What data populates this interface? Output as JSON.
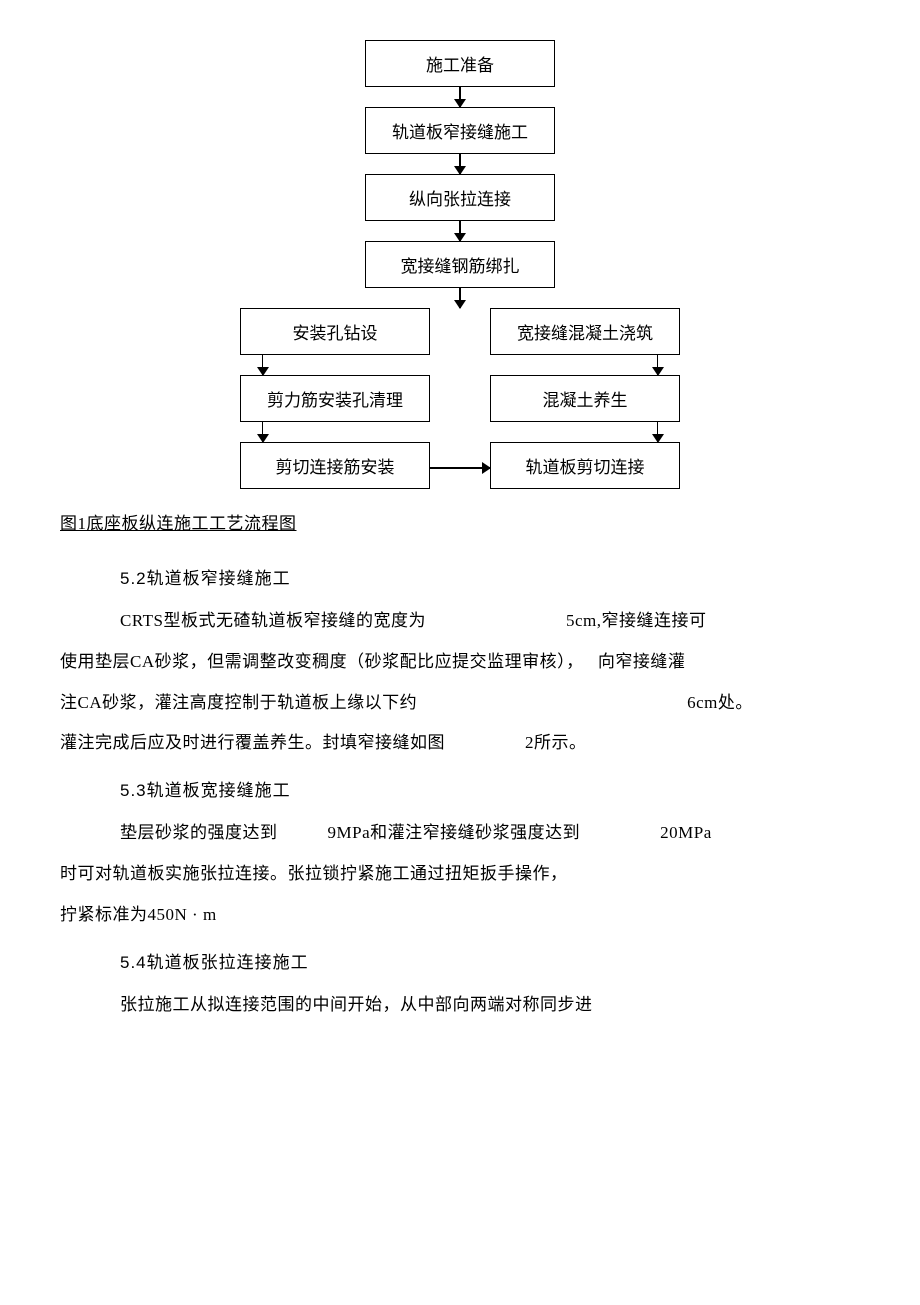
{
  "flowchart": {
    "nodes": {
      "n1": "施工准备",
      "n2": "轨道板窄接缝施工",
      "n3": "纵向张拉连接",
      "n4": "宽接缝钢筋绑扎",
      "n5l": "安装孔钻设",
      "n5r": "宽接缝混凝土浇筑",
      "n6l": "剪力筋安装孔清理",
      "n6r": "混凝土养生",
      "n7l": "剪切连接筋安装",
      "n7r": "轨道板剪切连接"
    },
    "node_border_color": "#000000",
    "node_bg_color": "#ffffff",
    "node_fontsize": 17,
    "arrow_color": "#000000"
  },
  "caption": "图1底座板纵连施工工艺流程图",
  "sections": {
    "s52": {
      "heading": "5.2轨道板窄接缝施工",
      "p1_a": "CRTS型板式无碴轨道板窄接缝的宽度为",
      "p1_b": "5cm,窄接缝连接可",
      "p1_c": "使用垫层CA砂浆，但需调整改变稠度（砂浆配比应提交监理审核），",
      "p1_d": "向窄接缝灌",
      "p1_e": "注CA砂浆，灌注高度控制于轨道板上缘以下约",
      "p1_f": "6cm处。",
      "p1_g": "灌注完成后应及时进行覆盖养生。封填窄接缝如图",
      "p1_h": "2所示。"
    },
    "s53": {
      "heading": "5.3轨道板宽接缝施工",
      "p1_a": "垫层砂浆的强度达到",
      "p1_b": "9MPa和灌注窄接缝砂浆强度达到",
      "p1_c": "20MPa",
      "p1_d": "时可对轨道板实施张拉连接。张拉锁拧紧施工通过扭矩扳手操作，",
      "p1_e": "拧紧标准为450N · m"
    },
    "s54": {
      "heading": "5.4轨道板张拉连接施工",
      "p1_a": "张拉施工从拟连接范围的中间开始，从中部向两端对称同步进"
    }
  },
  "colors": {
    "text": "#000000",
    "background": "#ffffff"
  },
  "typography": {
    "body_fontsize": 17,
    "line_height": 2.4,
    "heading_font": "SimHei",
    "body_font": "SimSun"
  }
}
